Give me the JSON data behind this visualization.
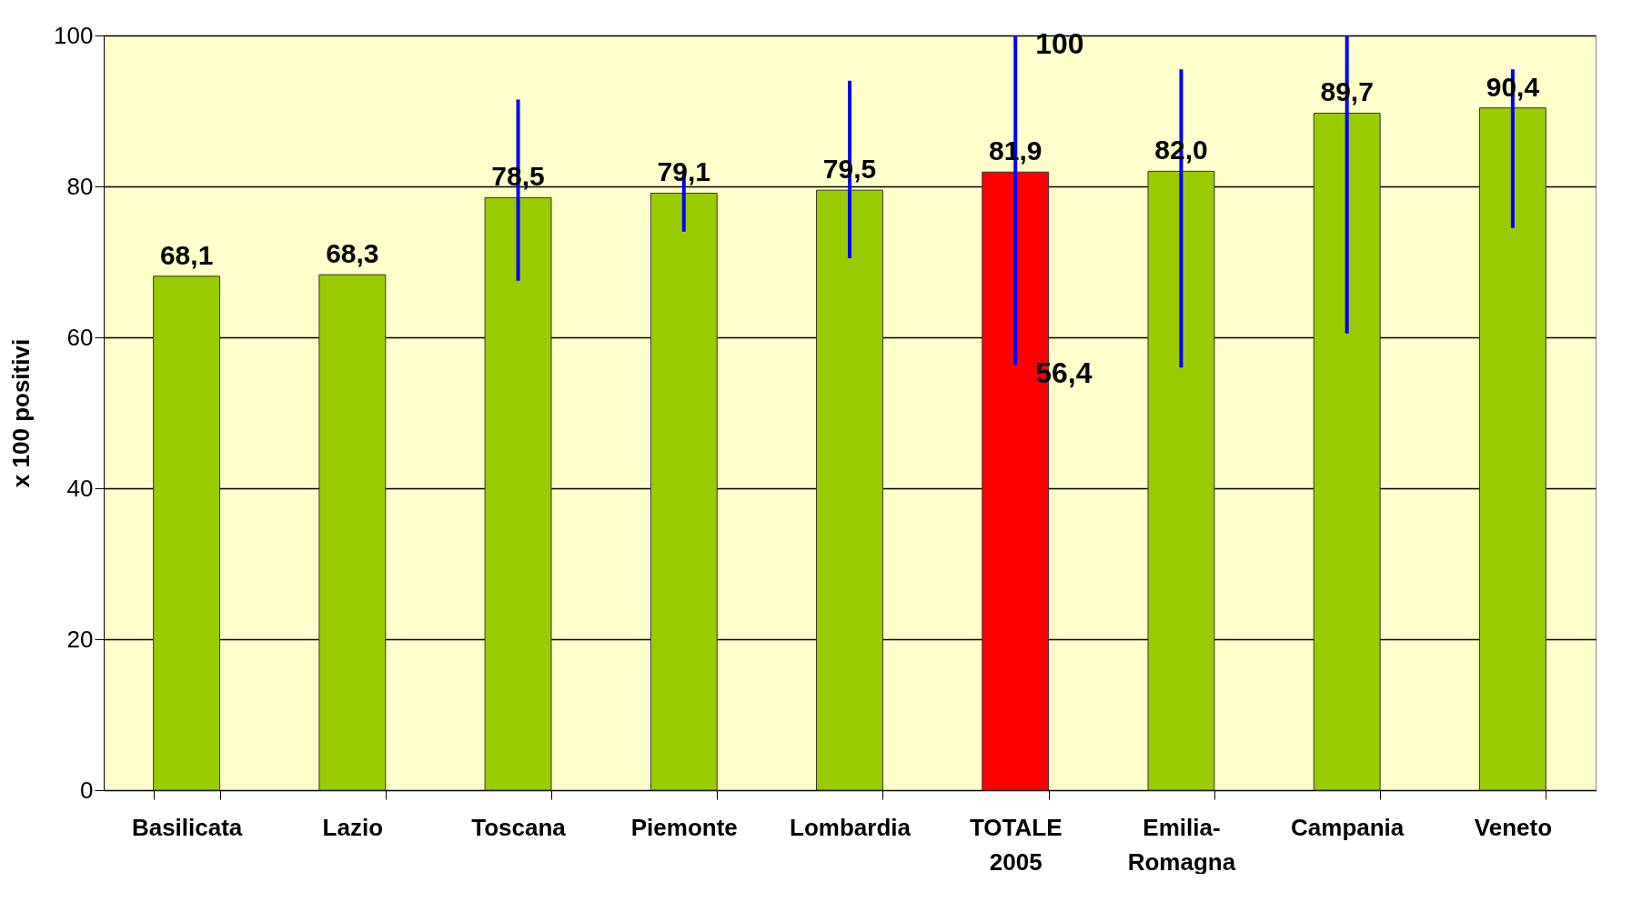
{
  "chart_data": {
    "type": "bar",
    "ylabel": "x 100 positivi",
    "categories": [
      "Basilicata",
      "Lazio",
      "Toscana",
      "Piemonte",
      "Lombardia",
      "TOTALE 2005",
      "Emilia-Romagna",
      "Campania",
      "Veneto"
    ],
    "values": [
      68.1,
      68.3,
      78.5,
      79.1,
      79.5,
      81.9,
      82.0,
      89.7,
      90.4
    ],
    "colors": [
      "#99cc00",
      "#99cc00",
      "#99cc00",
      "#99cc00",
      "#99cc00",
      "#ff0000",
      "#99cc00",
      "#99cc00",
      "#99cc00"
    ],
    "value_labels": [
      "68,1",
      "68,3",
      "78,5",
      "79,1",
      "79,5",
      "81,9",
      "82,0",
      "89,7",
      "90,4"
    ],
    "errors": [
      null,
      null,
      [
        67.5,
        91.5
      ],
      [
        74,
        82
      ],
      [
        70.5,
        94
      ],
      [
        56.4,
        100
      ],
      [
        56,
        95.5
      ],
      [
        60.5,
        100
      ],
      [
        74.5,
        95.5
      ]
    ],
    "annotations": [
      {
        "text": "100",
        "x": "TOTALE 2005",
        "y": 100
      },
      {
        "text": "56,4",
        "x": "TOTALE 2005",
        "y": 56.4
      }
    ],
    "ylim": [
      0,
      100
    ],
    "yticks": [
      0,
      20,
      40,
      60,
      80,
      100
    ],
    "grid": "y"
  }
}
